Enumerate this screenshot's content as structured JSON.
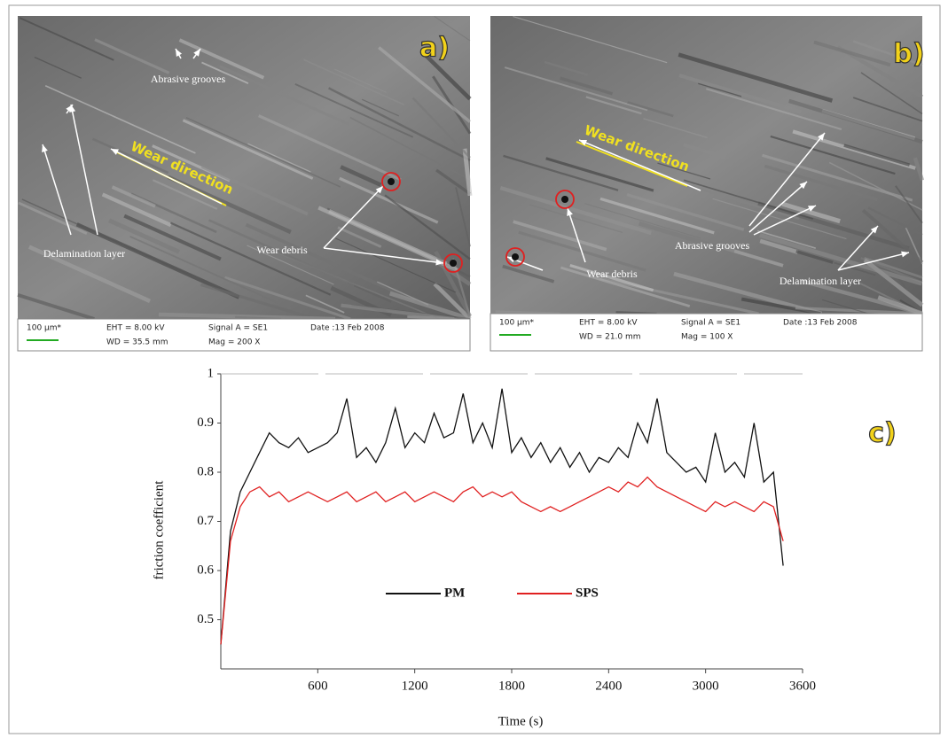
{
  "panels": [
    {
      "label": "a)",
      "annotations": [
        "Abrasive grooves",
        "Wear direction",
        "Delamination layer",
        "Wear debris"
      ],
      "scale_bar": "100 µm*",
      "info": [
        "EHT = 8.00 kV",
        "WD = 35.5 mm",
        "Signal A = SE1",
        "Mag =  200 X",
        "Date :13 Feb 2008"
      ]
    },
    {
      "label": "b)",
      "annotations": [
        "Wear direction",
        "Wear debris",
        "Abrasive grooves",
        "Delamination layer"
      ],
      "scale_bar": "100 µm*",
      "info": [
        "EHT = 8.00 kV",
        "WD = 21.0 mm",
        "Signal A = SE1",
        "Mag =  100 X",
        "Date :13 Feb 2008"
      ]
    }
  ],
  "chart_data": {
    "type": "line",
    "label": "c)",
    "x_label": "Time (s)",
    "y_label": "friction coefficient",
    "xlim": [
      0,
      3600
    ],
    "ylim": [
      0.4,
      1
    ],
    "xticks": [
      600,
      1200,
      1800,
      2400,
      3000,
      3600
    ],
    "yticks": [
      0.5,
      0.6,
      0.7,
      0.8,
      0.9,
      1
    ],
    "x": [
      0,
      60,
      120,
      180,
      240,
      300,
      360,
      420,
      480,
      540,
      600,
      660,
      720,
      780,
      840,
      900,
      960,
      1020,
      1080,
      1140,
      1200,
      1260,
      1320,
      1380,
      1440,
      1500,
      1560,
      1620,
      1680,
      1740,
      1800,
      1860,
      1920,
      1980,
      2040,
      2100,
      2160,
      2220,
      2280,
      2340,
      2400,
      2460,
      2520,
      2580,
      2640,
      2700,
      2760,
      2820,
      2880,
      2940,
      3000,
      3060,
      3120,
      3180,
      3240,
      3300,
      3360,
      3420,
      3480
    ],
    "series": [
      {
        "name": "PM",
        "color": "#111111",
        "values": [
          0.45,
          0.68,
          0.76,
          0.8,
          0.84,
          0.88,
          0.86,
          0.85,
          0.87,
          0.84,
          0.85,
          0.86,
          0.88,
          0.95,
          0.83,
          0.85,
          0.82,
          0.86,
          0.93,
          0.85,
          0.88,
          0.86,
          0.92,
          0.87,
          0.88,
          0.96,
          0.86,
          0.9,
          0.85,
          0.97,
          0.84,
          0.87,
          0.83,
          0.86,
          0.82,
          0.85,
          0.81,
          0.84,
          0.8,
          0.83,
          0.82,
          0.85,
          0.83,
          0.9,
          0.86,
          0.95,
          0.84,
          0.82,
          0.8,
          0.81,
          0.78,
          0.88,
          0.8,
          0.82,
          0.79,
          0.9,
          0.78,
          0.8,
          0.61
        ]
      },
      {
        "name": "SPS",
        "color": "#e02020",
        "values": [
          0.45,
          0.66,
          0.73,
          0.76,
          0.77,
          0.75,
          0.76,
          0.74,
          0.75,
          0.76,
          0.75,
          0.74,
          0.75,
          0.76,
          0.74,
          0.75,
          0.76,
          0.74,
          0.75,
          0.76,
          0.74,
          0.75,
          0.76,
          0.75,
          0.74,
          0.76,
          0.77,
          0.75,
          0.76,
          0.75,
          0.76,
          0.74,
          0.73,
          0.72,
          0.73,
          0.72,
          0.73,
          0.74,
          0.75,
          0.76,
          0.77,
          0.76,
          0.78,
          0.77,
          0.79,
          0.77,
          0.76,
          0.75,
          0.74,
          0.73,
          0.72,
          0.74,
          0.73,
          0.74,
          0.73,
          0.72,
          0.74,
          0.73,
          0.66
        ]
      }
    ],
    "legend": "inside-bottom"
  }
}
